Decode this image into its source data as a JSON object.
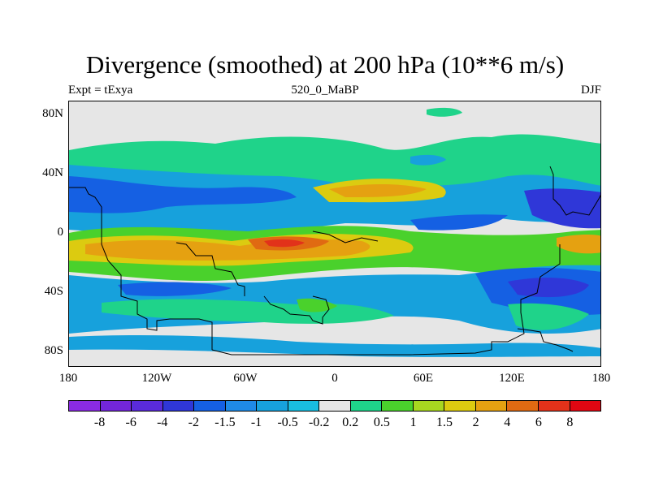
{
  "title": "Divergence (smoothed) at 200 hPa (10**6 m/s)",
  "left_label": "Expt = tExya",
  "center_label": "520_0_MaBP",
  "right_label": "DJF",
  "y_ticks": [
    "80N",
    "40N",
    "0",
    "40S",
    "80S"
  ],
  "x_ticks": [
    "180",
    "120W",
    "60W",
    "0",
    "60E",
    "120E",
    "180"
  ],
  "colorbar": {
    "colors": [
      "#8a2be2",
      "#7326d9",
      "#5a2bdb",
      "#2f37d8",
      "#1560e3",
      "#1f8ae6",
      "#17a1dc",
      "#19bde0",
      "#e6e6e6",
      "#1fd38a",
      "#4ad12c",
      "#a8d720",
      "#dccb10",
      "#e5a111",
      "#e06a12",
      "#e2321a",
      "#e10712"
    ],
    "labels": [
      "-8",
      "-6",
      "-4",
      "-2",
      "-1.5",
      "-1",
      "-0.5",
      "-0.2",
      "0.2",
      "0.5",
      "1",
      "1.5",
      "2",
      "4",
      "6",
      "8"
    ]
  }
}
